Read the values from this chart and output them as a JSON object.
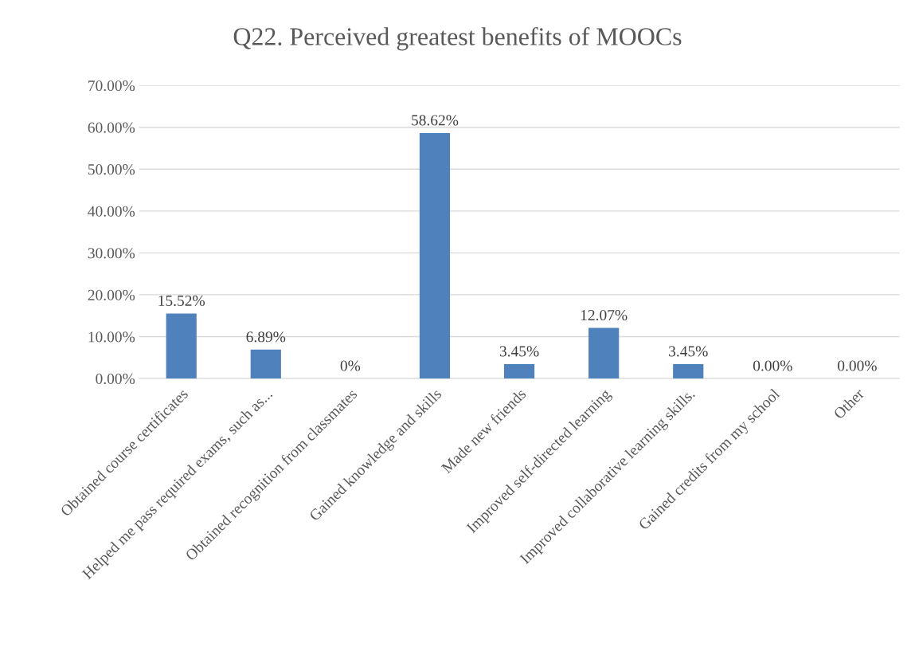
{
  "chart_data": {
    "type": "bar",
    "title": "Q22. Perceived greatest benefits of MOOCs",
    "categories": [
      "Obtained course certificates",
      "Helped me pass required exams, such as...",
      "Obtained recognition from classmates",
      "Gained knowledge and skills",
      "Made new friends",
      "Improved self-directed learning",
      "Improved collaborative learning skills.",
      "Gained credits from my school",
      "Other"
    ],
    "values": [
      15.52,
      6.89,
      0,
      58.62,
      3.45,
      12.07,
      3.45,
      0,
      0
    ],
    "value_labels": [
      "15.52%",
      "6.89%",
      "0%",
      "58.62%",
      "3.45%",
      "12.07%",
      "3.45%",
      "0.00%",
      "0.00%"
    ],
    "color": "#4f81bd",
    "ylim": [
      0,
      70
    ],
    "yticks": [
      {
        "value": 0,
        "label": "0.00%"
      },
      {
        "value": 10,
        "label": "10.00%"
      },
      {
        "value": 20,
        "label": "20.00%"
      },
      {
        "value": 30,
        "label": "30.00%"
      },
      {
        "value": 40,
        "label": "40.00%"
      },
      {
        "value": 50,
        "label": "50.00%"
      },
      {
        "value": 60,
        "label": "60.00%"
      },
      {
        "value": 70,
        "label": "70.00%"
      }
    ],
    "grid": "y",
    "legend": false
  }
}
